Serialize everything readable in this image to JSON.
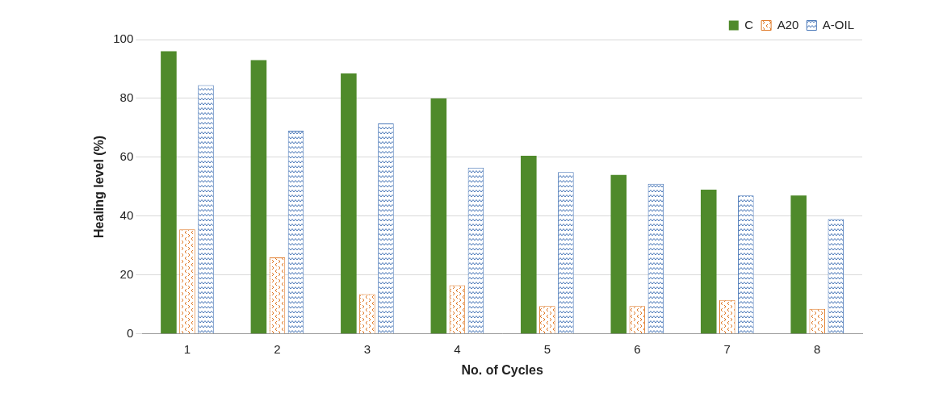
{
  "chart_data": {
    "type": "bar",
    "x_label": "No. of Cycles",
    "y_label": "Healing level (%)",
    "categories": [
      "1",
      "2",
      "3",
      "4",
      "5",
      "6",
      "7",
      "8"
    ],
    "series": [
      {
        "name": "C",
        "color": "#4f8a2b",
        "values": [
          96,
          93,
          88.5,
          80,
          60.5,
          54,
          49,
          47
        ]
      },
      {
        "name": "A20",
        "color": "#e07b2a",
        "values": [
          35.5,
          26,
          13.5,
          16.5,
          9.5,
          9.5,
          11.5,
          8.5
        ]
      },
      {
        "name": "A-OIL",
        "color": "#4a78b8",
        "values": [
          84.5,
          69,
          71.5,
          56.5,
          55,
          51,
          47,
          39
        ]
      }
    ],
    "ylim": [
      0,
      100
    ],
    "yticks": [
      0,
      20,
      40,
      60,
      80,
      100
    ],
    "grid": true,
    "legend": "top-right"
  }
}
